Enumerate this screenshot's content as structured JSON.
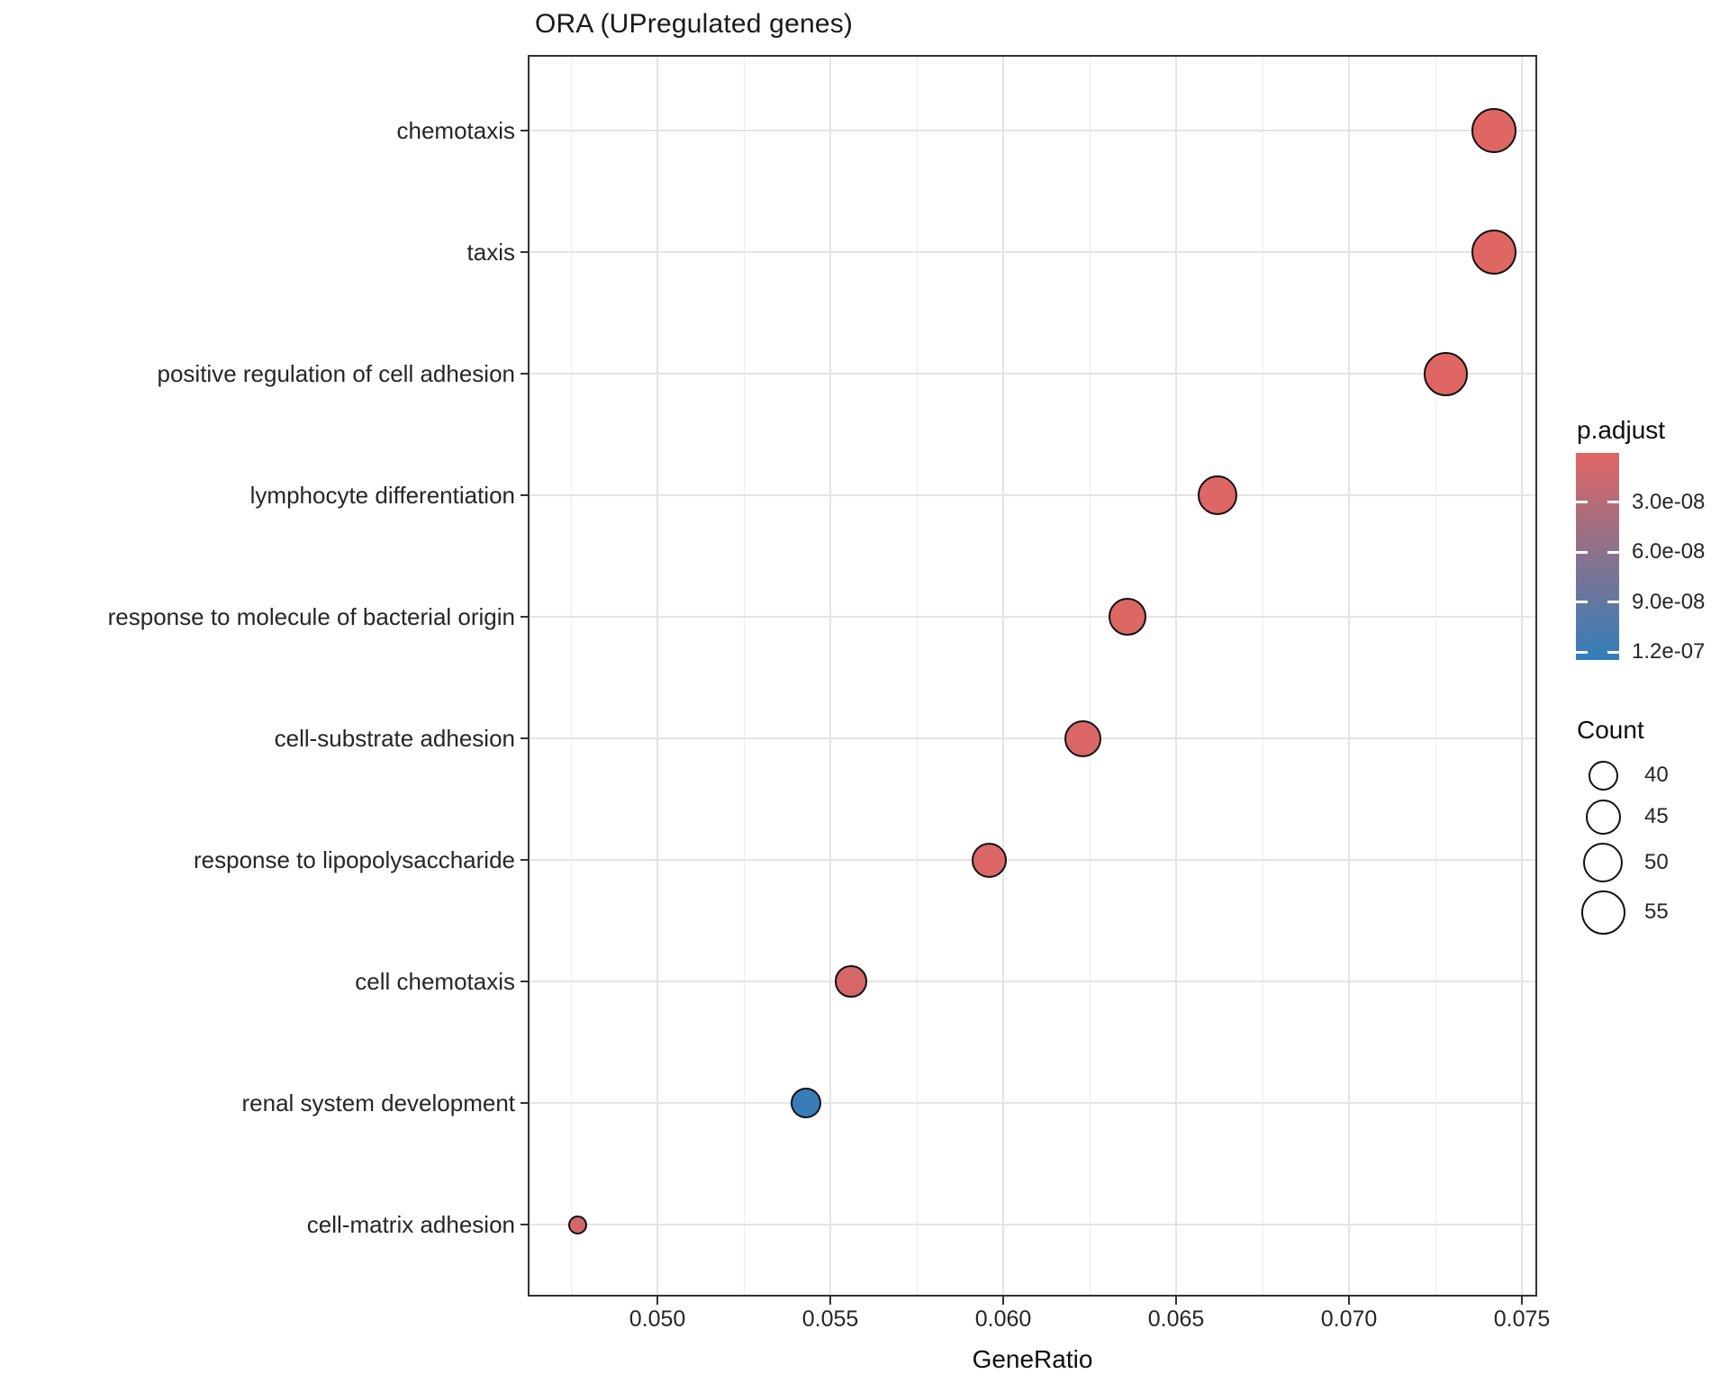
{
  "title": "ORA (UPregulated genes)",
  "chart_data": {
    "type": "scatter",
    "title": "ORA (UPregulated genes)",
    "xlabel": "GeneRatio",
    "ylabel": "",
    "grid": "major horizontal per category; major and minor vertical",
    "legend_position": "right",
    "x_range": [
      0.0463,
      0.0754
    ],
    "x_tick_values": [
      0.05,
      0.055,
      0.06,
      0.065,
      0.07,
      0.075
    ],
    "x_tick_labels": [
      "0.050",
      "0.055",
      "0.060",
      "0.065",
      "0.070",
      "0.075"
    ],
    "points": [
      {
        "term": "chemotaxis",
        "gene_ratio": 0.0742,
        "count": 56,
        "p_adjust": 4e-10
      },
      {
        "term": "taxis",
        "gene_ratio": 0.0742,
        "count": 56,
        "p_adjust": 4e-10
      },
      {
        "term": "positive regulation of cell adhesion",
        "gene_ratio": 0.0728,
        "count": 55,
        "p_adjust": 1e-09
      },
      {
        "term": "lymphocyte differentiation",
        "gene_ratio": 0.0662,
        "count": 50,
        "p_adjust": 2e-09
      },
      {
        "term": "response to molecule of bacterial origin",
        "gene_ratio": 0.0636,
        "count": 48,
        "p_adjust": 3e-09
      },
      {
        "term": "cell-substrate adhesion",
        "gene_ratio": 0.0623,
        "count": 47,
        "p_adjust": 5e-09
      },
      {
        "term": "response to lipopolysaccharide",
        "gene_ratio": 0.0596,
        "count": 45,
        "p_adjust": 4e-09
      },
      {
        "term": "cell chemotaxis",
        "gene_ratio": 0.0556,
        "count": 42,
        "p_adjust": 8e-09
      },
      {
        "term": "renal system development",
        "gene_ratio": 0.0543,
        "count": 41,
        "p_adjust": 1.2e-07
      },
      {
        "term": "cell-matrix adhesion",
        "gene_ratio": 0.0477,
        "count": 36,
        "p_adjust": 1e-08
      }
    ],
    "legend_p_adjust": {
      "title": "p.adjust",
      "tick_values": [
        3e-08,
        6e-08,
        9e-08,
        1.2e-07
      ],
      "tick_labels": [
        "3.0e-08",
        "6.0e-08",
        "9.0e-08",
        "1.2e-07"
      ],
      "value_range": [
        4e-10,
        1.246e-07
      ],
      "color_low": "#E06663",
      "color_high": "#327EBA"
    },
    "legend_count": {
      "title": "Count",
      "break_values": [
        40,
        45,
        50,
        55
      ],
      "break_labels": [
        "40",
        "45",
        "50",
        "55"
      ]
    }
  }
}
